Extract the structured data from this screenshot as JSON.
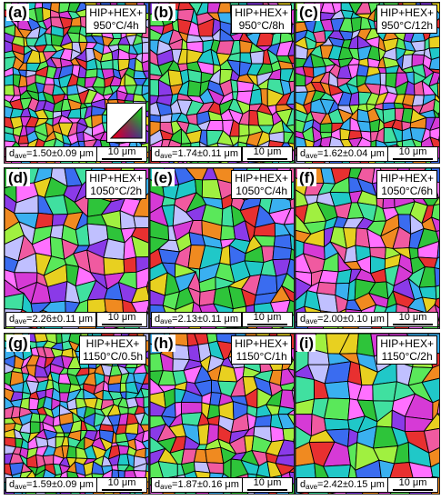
{
  "figure": {
    "scale_bar_label": "10 μm",
    "d_symbol": "d",
    "d_subscript": "ave",
    "panels": [
      {
        "label": "(a)",
        "cond_line1": "HIP+HEX+",
        "cond_line2": "950°C/4h",
        "d_value": "=1.50±0.09 μm",
        "ipf_key": true
      },
      {
        "label": "(b)",
        "cond_line1": "HIP+HEX+",
        "cond_line2": "950°C/8h",
        "d_value": "=1.74±0.11 μm",
        "ipf_key": false
      },
      {
        "label": "(c)",
        "cond_line1": "HIP+HEX+",
        "cond_line2": "950°C/12h",
        "d_value": "=1.62±0.04 μm",
        "ipf_key": false
      },
      {
        "label": "(d)",
        "cond_line1": "HIP+HEX+",
        "cond_line2": "1050°C/2h",
        "d_value": "=2.26±0.11 μm",
        "ipf_key": false
      },
      {
        "label": "(e)",
        "cond_line1": "HIP+HEX+",
        "cond_line2": "1050°C/4h",
        "d_value": "=2.13±0.11 μm",
        "ipf_key": false
      },
      {
        "label": "(f)",
        "cond_line1": "HIP+HEX+",
        "cond_line2": "1050°C/6h",
        "d_value": "=2.00±0.10 μm",
        "ipf_key": false
      },
      {
        "label": "(g)",
        "cond_line1": "HIP+HEX+",
        "cond_line2": "1150°C/0.5h",
        "d_value": "=1.59±0.09 μm",
        "ipf_key": false
      },
      {
        "label": "(h)",
        "cond_line1": "HIP+HEX+",
        "cond_line2": "1150°C/1h",
        "d_value": "=1.87±0.16 μm",
        "ipf_key": false
      },
      {
        "label": "(i)",
        "cond_line1": "HIP+HEX+",
        "cond_line2": "1150°C/2h",
        "d_value": "=2.42±0.15 μm",
        "ipf_key": false
      }
    ],
    "grain_palette": [
      "#e83030",
      "#2ec43a",
      "#3a6cf0",
      "#d63ad6",
      "#20c8c8",
      "#e8d020",
      "#f08a20",
      "#8a3ae8",
      "#5ae85a",
      "#3ab0f0",
      "#f05aa0",
      "#a0f040",
      "#40e0a0",
      "#c0c0ff",
      "#ff70ff"
    ]
  }
}
